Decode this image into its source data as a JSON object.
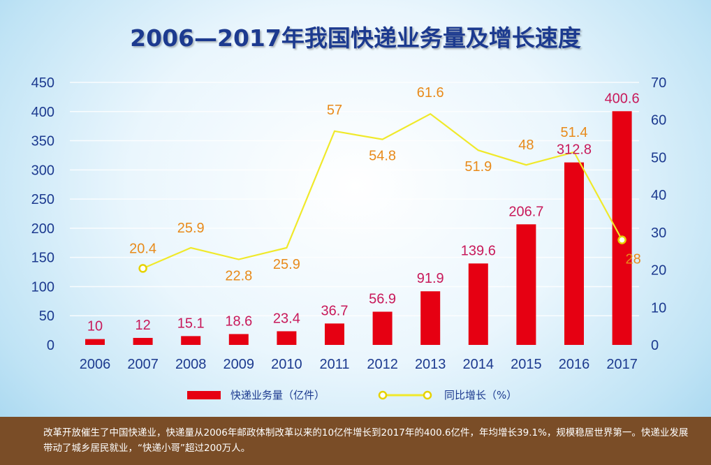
{
  "title": "2006—2017年我国快递业务量及增长速度",
  "footer_text": "改革开放催生了中国快递业，快递量从2006年邮政体制改革以来的10亿件增长到2017年的400.6亿件，年均增长39.1%，规模稳居世界第一。快递业发展带动了城乡居民就业，“快递小哥”超过200万人。",
  "chart_data": {
    "type": "bar",
    "title": "2006—2017年我国快递业务量及增长速度",
    "categories": [
      "2006",
      "2007",
      "2008",
      "2009",
      "2010",
      "2011",
      "2012",
      "2013",
      "2014",
      "2015",
      "2016",
      "2017"
    ],
    "series": [
      {
        "name": "快递业务量（亿件）",
        "type": "bar",
        "axis": "left",
        "color": "#e60012",
        "values": [
          10,
          12,
          15.1,
          18.6,
          23.4,
          36.7,
          56.9,
          91.9,
          139.6,
          206.7,
          312.8,
          400.6
        ],
        "labels": [
          "10",
          "12",
          "15.1",
          "18.6",
          "23.4",
          "36.7",
          "56.9",
          "91.9",
          "139.6",
          "206.7",
          "312.8",
          "400.6"
        ]
      },
      {
        "name": "同比增长（%）",
        "type": "line",
        "axis": "right",
        "color": "#f0e92a",
        "values": [
          null,
          20.4,
          25.9,
          22.8,
          25.9,
          57,
          54.8,
          61.6,
          51.9,
          48,
          51.4,
          28
        ],
        "labels": [
          "",
          "20.4",
          "25.9",
          "22.8",
          "25.9",
          "57",
          "54.8",
          "61.6",
          "51.9",
          "48",
          "51.4",
          "28"
        ]
      }
    ],
    "left_axis": {
      "ylim": [
        0,
        450
      ],
      "ticks": [
        "0",
        "50",
        "100",
        "150",
        "200",
        "250",
        "300",
        "350",
        "400",
        "450"
      ]
    },
    "right_axis": {
      "ylim": [
        0,
        70
      ],
      "ticks": [
        "0",
        "10",
        "20",
        "30",
        "40",
        "50",
        "60",
        "70"
      ]
    },
    "grid": true,
    "legend": {
      "position": "bottom"
    },
    "label_color_bar": "#c8195a",
    "label_color_line": "#e88a1a",
    "axis_text_color": "#1c3a8f"
  }
}
